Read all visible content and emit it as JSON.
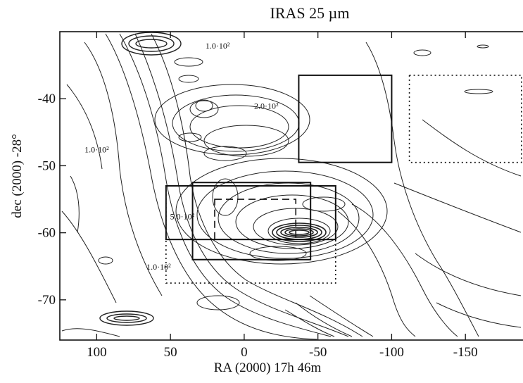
{
  "chart_data": {
    "type": "contour",
    "title": "IRAS 25 µm",
    "xlabel": "RA (2000) 17h 46m",
    "ylabel": "dec (2000) -28°",
    "xlim": [
      125,
      -190
    ],
    "ylim": [
      -76,
      -30
    ],
    "x_ticks": [
      {
        "value": 100,
        "label": "100"
      },
      {
        "value": 50,
        "label": "50"
      },
      {
        "value": 0,
        "label": "0"
      },
      {
        "value": -50,
        "label": "-50"
      },
      {
        "value": -100,
        "label": "-100"
      },
      {
        "value": -150,
        "label": "-150"
      }
    ],
    "y_ticks": [
      {
        "value": -40,
        "label": "-40"
      },
      {
        "value": -50,
        "label": "-50"
      },
      {
        "value": -60,
        "label": "-60"
      },
      {
        "value": -70,
        "label": "-70"
      }
    ],
    "contour_labels": [
      {
        "text": "1.0·10²",
        "x": 18,
        "y": -32.5
      },
      {
        "text": "2.0·10²",
        "x": -15,
        "y": -41.5
      },
      {
        "text": "1.0·10²",
        "x": 100,
        "y": -48
      },
      {
        "text": "5.0·10²",
        "x": 42,
        "y": -58
      },
      {
        "text": "1.0·10²",
        "x": 58,
        "y": -65.5
      }
    ],
    "regions": [
      {
        "style": "solid",
        "x": [
          -37,
          -100
        ],
        "y": [
          -36.5,
          -49.5
        ]
      },
      {
        "style": "dotted",
        "x": [
          -112,
          -188
        ],
        "y": [
          -36.5,
          -49.5
        ]
      },
      {
        "style": "dotted",
        "x": [
          53,
          -62
        ],
        "y": [
          -53,
          -67.5
        ]
      },
      {
        "style": "solid",
        "x": [
          53,
          -62
        ],
        "y": [
          -53,
          -61
        ]
      },
      {
        "style": "solid",
        "x": [
          35,
          -45
        ],
        "y": [
          -52.5,
          -64
        ]
      },
      {
        "style": "dashed",
        "x": [
          20,
          -35
        ],
        "y": [
          -55,
          -61
        ]
      }
    ],
    "grid": false
  }
}
